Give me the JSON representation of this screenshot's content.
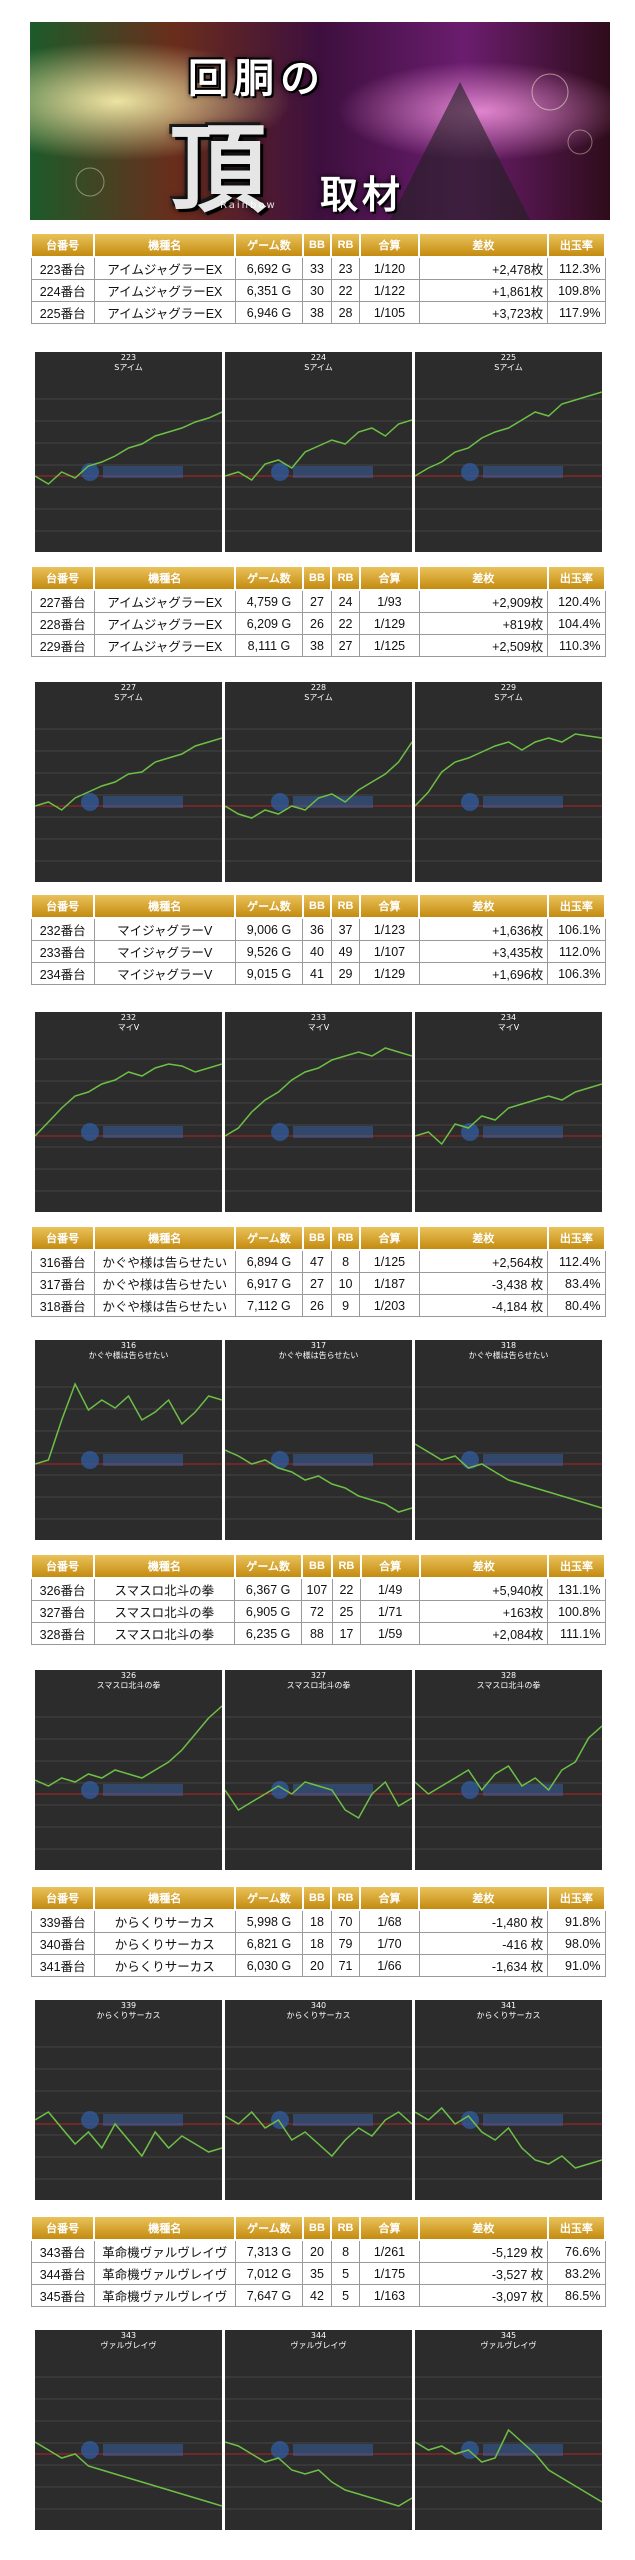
{
  "banner": {
    "title_kanji": "回胴の",
    "title_big": "頂",
    "title_sub": "取材",
    "tagline": "Rainbow"
  },
  "table_header": {
    "machine_no": "台番号",
    "model": "機種名",
    "games": "ゲーム数",
    "bb": "BB",
    "rb": "RB",
    "combined": "合算",
    "diff": "差枚",
    "payout": "出玉率"
  },
  "groups": [
    {
      "rows": [
        {
          "no": "223番台",
          "model": "アイムジャグラーEX",
          "games": "6,692 G",
          "bb": "33",
          "rb": "23",
          "combined": "1/120",
          "diff": "+2,478枚",
          "payout": "112.3%"
        },
        {
          "no": "224番台",
          "model": "アイムジャグラーEX",
          "games": "6,351 G",
          "bb": "30",
          "rb": "22",
          "combined": "1/122",
          "diff": "+1,861枚",
          "payout": "109.8%"
        },
        {
          "no": "225番台",
          "model": "アイムジャグラーEX",
          "games": "6,946 G",
          "bb": "38",
          "rb": "28",
          "combined": "1/105",
          "diff": "+3,723枚",
          "payout": "117.9%"
        }
      ],
      "graphs": [
        {
          "num": "223",
          "name": "Sアイム",
          "line": [
            0.62,
            0.66,
            0.6,
            0.63,
            0.57,
            0.55,
            0.52,
            0.48,
            0.46,
            0.42,
            0.4,
            0.38,
            0.35,
            0.33,
            0.3
          ]
        },
        {
          "num": "224",
          "name": "Sアイム",
          "line": [
            0.62,
            0.6,
            0.64,
            0.56,
            0.54,
            0.58,
            0.5,
            0.47,
            0.44,
            0.46,
            0.4,
            0.38,
            0.42,
            0.36,
            0.34
          ]
        },
        {
          "num": "225",
          "name": "Sアイム",
          "line": [
            0.62,
            0.58,
            0.55,
            0.5,
            0.48,
            0.43,
            0.4,
            0.38,
            0.34,
            0.3,
            0.32,
            0.26,
            0.24,
            0.22,
            0.2
          ]
        }
      ]
    },
    {
      "rows": [
        {
          "no": "227番台",
          "model": "アイムジャグラーEX",
          "games": "4,759 G",
          "bb": "27",
          "rb": "24",
          "combined": "1/93",
          "diff": "+2,909枚",
          "payout": "120.4%"
        },
        {
          "no": "228番台",
          "model": "アイムジャグラーEX",
          "games": "6,209 G",
          "bb": "26",
          "rb": "22",
          "combined": "1/129",
          "diff": "+819枚",
          "payout": "104.4%"
        },
        {
          "no": "229番台",
          "model": "アイムジャグラーEX",
          "games": "8,111 G",
          "bb": "38",
          "rb": "27",
          "combined": "1/125",
          "diff": "+2,509枚",
          "payout": "110.3%"
        }
      ],
      "graphs": [
        {
          "num": "227",
          "name": "Sアイム",
          "line": [
            0.62,
            0.6,
            0.64,
            0.58,
            0.55,
            0.52,
            0.5,
            0.46,
            0.45,
            0.4,
            0.38,
            0.36,
            0.32,
            0.3,
            0.28
          ]
        },
        {
          "num": "228",
          "name": "Sアイム",
          "line": [
            0.62,
            0.66,
            0.68,
            0.64,
            0.66,
            0.62,
            0.64,
            0.58,
            0.56,
            0.6,
            0.54,
            0.5,
            0.46,
            0.4,
            0.3
          ]
        },
        {
          "num": "229",
          "name": "Sアイム",
          "line": [
            0.62,
            0.55,
            0.45,
            0.4,
            0.38,
            0.35,
            0.32,
            0.3,
            0.34,
            0.3,
            0.28,
            0.3,
            0.26,
            0.27,
            0.28
          ]
        }
      ]
    },
    {
      "rows": [
        {
          "no": "232番台",
          "model": "マイジャグラーV",
          "games": "9,006 G",
          "bb": "36",
          "rb": "37",
          "combined": "1/123",
          "diff": "+1,636枚",
          "payout": "106.1%"
        },
        {
          "no": "233番台",
          "model": "マイジャグラーV",
          "games": "9,526 G",
          "bb": "40",
          "rb": "49",
          "combined": "1/107",
          "diff": "+3,435枚",
          "payout": "112.0%"
        },
        {
          "no": "234番台",
          "model": "マイジャグラーV",
          "games": "9,015 G",
          "bb": "41",
          "rb": "29",
          "combined": "1/129",
          "diff": "+1,696枚",
          "payout": "106.3%"
        }
      ],
      "graphs": [
        {
          "num": "232",
          "name": "マイV",
          "line": [
            0.62,
            0.55,
            0.48,
            0.42,
            0.4,
            0.36,
            0.34,
            0.3,
            0.32,
            0.28,
            0.26,
            0.27,
            0.3,
            0.28,
            0.26
          ]
        },
        {
          "num": "233",
          "name": "マイV",
          "line": [
            0.62,
            0.58,
            0.5,
            0.44,
            0.4,
            0.34,
            0.3,
            0.28,
            0.24,
            0.22,
            0.2,
            0.22,
            0.18,
            0.2,
            0.22
          ]
        },
        {
          "num": "234",
          "name": "マイV",
          "line": [
            0.62,
            0.6,
            0.66,
            0.56,
            0.58,
            0.52,
            0.54,
            0.48,
            0.46,
            0.44,
            0.42,
            0.44,
            0.4,
            0.38,
            0.36
          ]
        }
      ]
    },
    {
      "rows": [
        {
          "no": "316番台",
          "model": "かぐや様は告らせたい",
          "games": "6,894 G",
          "bb": "47",
          "rb": "8",
          "combined": "1/125",
          "diff": "+2,564枚",
          "payout": "112.4%"
        },
        {
          "no": "317番台",
          "model": "かぐや様は告らせたい",
          "games": "6,917 G",
          "bb": "27",
          "rb": "10",
          "combined": "1/187",
          "diff": "-3,438 枚",
          "payout": "83.4%"
        },
        {
          "no": "318番台",
          "model": "かぐや様は告らせたい",
          "games": "7,112 G",
          "bb": "26",
          "rb": "9",
          "combined": "1/203",
          "diff": "-4,184 枚",
          "payout": "80.4%"
        }
      ],
      "graphs": [
        {
          "num": "316",
          "name": "かぐや様は告らせたい",
          "line": [
            0.62,
            0.6,
            0.4,
            0.22,
            0.35,
            0.3,
            0.34,
            0.28,
            0.4,
            0.36,
            0.3,
            0.42,
            0.36,
            0.28,
            0.3
          ]
        },
        {
          "num": "317",
          "name": "かぐや様は告らせたい",
          "line": [
            0.55,
            0.58,
            0.62,
            0.6,
            0.64,
            0.66,
            0.7,
            0.68,
            0.72,
            0.74,
            0.78,
            0.8,
            0.82,
            0.86,
            0.84
          ]
        },
        {
          "num": "318",
          "name": "かぐや様は告らせたい",
          "line": [
            0.52,
            0.56,
            0.6,
            0.58,
            0.64,
            0.62,
            0.66,
            0.7,
            0.72,
            0.74,
            0.76,
            0.78,
            0.8,
            0.82,
            0.84
          ]
        }
      ]
    },
    {
      "rows": [
        {
          "no": "326番台",
          "model": "スマスロ北斗の拳",
          "games": "6,367 G",
          "bb": "107",
          "rb": "22",
          "combined": "1/49",
          "diff": "+5,940枚",
          "payout": "131.1%"
        },
        {
          "no": "327番台",
          "model": "スマスロ北斗の拳",
          "games": "6,905 G",
          "bb": "72",
          "rb": "25",
          "combined": "1/71",
          "diff": "+163枚",
          "payout": "100.8%"
        },
        {
          "no": "328番台",
          "model": "スマスロ北斗の拳",
          "games": "6,235 G",
          "bb": "88",
          "rb": "17",
          "combined": "1/59",
          "diff": "+2,084枚",
          "payout": "111.1%"
        }
      ],
      "graphs": [
        {
          "num": "326",
          "name": "スマスロ北斗の拳",
          "line": [
            0.55,
            0.58,
            0.54,
            0.56,
            0.52,
            0.54,
            0.5,
            0.52,
            0.54,
            0.5,
            0.46,
            0.4,
            0.32,
            0.24,
            0.18
          ]
        },
        {
          "num": "327",
          "name": "スマスロ北斗の拳",
          "line": [
            0.6,
            0.7,
            0.66,
            0.62,
            0.58,
            0.62,
            0.56,
            0.58,
            0.6,
            0.7,
            0.74,
            0.62,
            0.56,
            0.68,
            0.64
          ]
        },
        {
          "num": "328",
          "name": "スマスロ北斗の拳",
          "line": [
            0.56,
            0.62,
            0.58,
            0.54,
            0.5,
            0.6,
            0.52,
            0.48,
            0.58,
            0.54,
            0.6,
            0.5,
            0.46,
            0.34,
            0.28
          ]
        }
      ]
    },
    {
      "rows": [
        {
          "no": "339番台",
          "model": "からくりサーカス",
          "games": "5,998 G",
          "bb": "18",
          "rb": "70",
          "combined": "1/68",
          "diff": "-1,480 枚",
          "payout": "91.8%"
        },
        {
          "no": "340番台",
          "model": "からくりサーカス",
          "games": "6,821 G",
          "bb": "18",
          "rb": "79",
          "combined": "1/70",
          "diff": "-416 枚",
          "payout": "98.0%"
        },
        {
          "no": "341番台",
          "model": "からくりサーカス",
          "games": "6,030 G",
          "bb": "20",
          "rb": "71",
          "combined": "1/66",
          "diff": "-1,634 枚",
          "payout": "91.0%"
        }
      ],
      "graphs": [
        {
          "num": "339",
          "name": "からくりサーカス",
          "line": [
            0.6,
            0.56,
            0.64,
            0.72,
            0.66,
            0.74,
            0.62,
            0.7,
            0.78,
            0.66,
            0.74,
            0.68,
            0.72,
            0.76,
            0.74
          ]
        },
        {
          "num": "340",
          "name": "からくりサーカス",
          "line": [
            0.58,
            0.62,
            0.56,
            0.64,
            0.6,
            0.7,
            0.66,
            0.72,
            0.78,
            0.7,
            0.64,
            0.68,
            0.6,
            0.56,
            0.62
          ]
        },
        {
          "num": "341",
          "name": "からくりサーカス",
          "line": [
            0.56,
            0.6,
            0.54,
            0.62,
            0.58,
            0.66,
            0.7,
            0.64,
            0.74,
            0.8,
            0.82,
            0.78,
            0.84,
            0.82,
            0.8
          ]
        }
      ]
    },
    {
      "rows": [
        {
          "no": "343番台",
          "model": "革命機ヴァルヴレイヴ",
          "games": "7,313 G",
          "bb": "20",
          "rb": "8",
          "combined": "1/261",
          "diff": "-5,129 枚",
          "payout": "76.6%"
        },
        {
          "no": "344番台",
          "model": "革命機ヴァルヴレイヴ",
          "games": "7,012 G",
          "bb": "35",
          "rb": "5",
          "combined": "1/175",
          "diff": "-3,527 枚",
          "payout": "83.2%"
        },
        {
          "no": "345番台",
          "model": "革命機ヴァルヴレイヴ",
          "games": "7,647 G",
          "bb": "42",
          "rb": "5",
          "combined": "1/163",
          "diff": "-3,097 枚",
          "payout": "86.5%"
        }
      ],
      "graphs": [
        {
          "num": "343",
          "name": "ヴァルヴレイヴ",
          "line": [
            0.56,
            0.6,
            0.64,
            0.62,
            0.68,
            0.7,
            0.72,
            0.74,
            0.76,
            0.78,
            0.8,
            0.82,
            0.84,
            0.86,
            0.88
          ]
        },
        {
          "num": "344",
          "name": "ヴァルヴレイヴ",
          "line": [
            0.56,
            0.58,
            0.62,
            0.66,
            0.64,
            0.7,
            0.72,
            0.7,
            0.76,
            0.8,
            0.82,
            0.84,
            0.86,
            0.88,
            0.84
          ]
        },
        {
          "num": "345",
          "name": "ヴァルヴレイヴ",
          "line": [
            0.56,
            0.6,
            0.58,
            0.62,
            0.6,
            0.66,
            0.64,
            0.5,
            0.56,
            0.62,
            0.7,
            0.74,
            0.78,
            0.82,
            0.86
          ]
        }
      ]
    }
  ],
  "colors": {
    "header_gold": "#d9a52c",
    "plus": "#2433c9",
    "minus": "#d8252a",
    "graph_bg": "#2c2c2c",
    "graph_line": "#6dc046",
    "zero_line": "#b22424"
  }
}
